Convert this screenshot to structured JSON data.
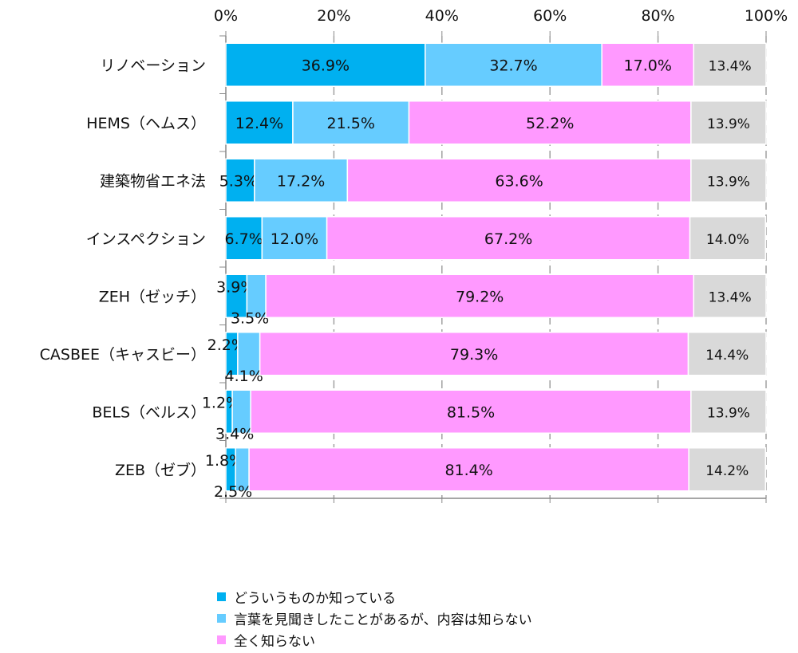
{
  "chart_data": {
    "type": "bar",
    "orientation": "horizontal-stacked-100",
    "categories": [
      "リノベーション",
      "HEMS（ヘムス）",
      "建築物省エネ法",
      "インスペクション",
      "ZEH（ゼッチ）",
      "CASBEE（キャスビー）",
      "BELS（ベルス）",
      "ZEB（ゼブ）"
    ],
    "series": [
      {
        "name": "どういうものか知っている",
        "color": "#00b0f0",
        "values": [
          36.9,
          12.4,
          5.3,
          6.7,
          3.9,
          2.2,
          1.2,
          1.8
        ]
      },
      {
        "name": "言葉を見聞きしたことがあるが、内容は知らない",
        "color": "#66ccff",
        "values": [
          32.7,
          21.5,
          17.2,
          12.0,
          3.5,
          4.1,
          3.4,
          2.5
        ]
      },
      {
        "name": "全く知らない",
        "color": "#ff99ff",
        "values": [
          17.0,
          52.2,
          63.6,
          67.2,
          79.2,
          79.3,
          81.5,
          81.4
        ]
      },
      {
        "name": null,
        "color": "#d9d9d9",
        "values": [
          13.4,
          13.9,
          13.9,
          14.0,
          13.4,
          14.4,
          13.9,
          14.2
        ]
      }
    ],
    "xlim": [
      0,
      100
    ],
    "xticks": [
      "0%",
      "20%",
      "40%",
      "60%",
      "80%",
      "100%"
    ],
    "xtick_values": [
      0,
      20,
      40,
      60,
      80,
      100
    ],
    "grid": true,
    "legend_position": "bottom"
  }
}
